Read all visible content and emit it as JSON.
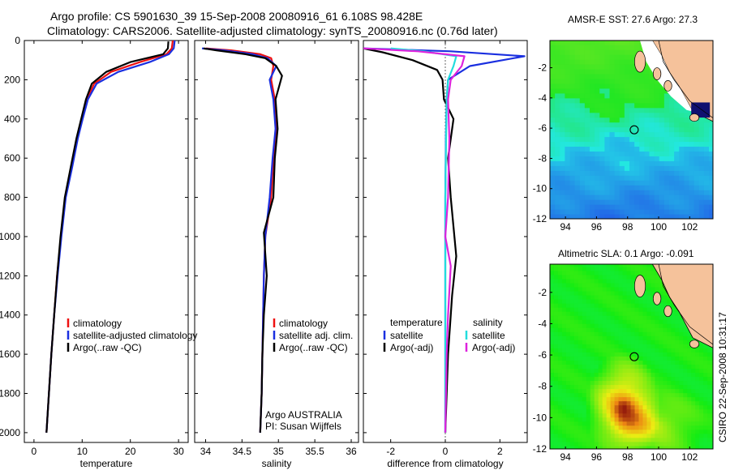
{
  "header": {
    "line1": "Argo profile: CS 5901630_39 15-Sep-2008 20080916_61 6.108S 98.428E",
    "line2": "Climatology: CARS2006. Satellite-adjusted climatology: synTS_20080916.nc (0.76d later)"
  },
  "stamp": "CSIRO 22-Sep-2008 10:31:17",
  "colors": {
    "climatology": "#ee1111",
    "satellite": "#1a2fe0",
    "argo": "#000000",
    "salinity_satellite": "#22dddd",
    "salinity_argo": "#dd22dd",
    "land": "#f5c29b"
  },
  "chart_data": [
    {
      "type": "line",
      "name": "temperature",
      "xlabel": "temperature",
      "ylabel": "",
      "xlim": [
        -2,
        32
      ],
      "ylim": [
        2050,
        0
      ],
      "xticks": [
        0,
        10,
        20,
        30
      ],
      "yticks": [
        0,
        200,
        400,
        600,
        800,
        1000,
        1200,
        1400,
        1600,
        1800,
        2000
      ],
      "legend": [
        "climatology",
        "satellite-adjusted climatology",
        "Argo(..raw -QC)"
      ],
      "series": [
        {
          "name": "climatology",
          "color": "#ee1111",
          "x": [
            28.8,
            28.6,
            27.5,
            22,
            16,
            12.5,
            11,
            10,
            9,
            7.8,
            6.5,
            5.6,
            4.8,
            4.2,
            3.6,
            3.1,
            2.6
          ],
          "y": [
            0,
            40,
            70,
            110,
            160,
            220,
            300,
            400,
            500,
            650,
            800,
            1000,
            1200,
            1400,
            1600,
            1800,
            2000
          ]
        },
        {
          "name": "satellite-adjusted climatology",
          "color": "#1a2fe0",
          "x": [
            29.2,
            29,
            28,
            24,
            17.5,
            13,
            11.2,
            10.1,
            9.1,
            7.9,
            6.6,
            5.7,
            4.9,
            4.2,
            3.6,
            3.1,
            2.6
          ],
          "y": [
            0,
            40,
            70,
            110,
            160,
            220,
            300,
            400,
            500,
            650,
            800,
            1000,
            1200,
            1400,
            1600,
            1800,
            2000
          ]
        },
        {
          "name": "Argo(..raw -QC)",
          "color": "#000000",
          "x": [
            27.9,
            27.8,
            26.8,
            20,
            15,
            12,
            10.8,
            9.8,
            8.8,
            7.6,
            6.4,
            5.5,
            4.8,
            4.2,
            3.6,
            3.1,
            2.6
          ],
          "y": [
            5,
            40,
            70,
            110,
            160,
            220,
            300,
            400,
            500,
            650,
            800,
            1000,
            1200,
            1400,
            1600,
            1800,
            2000
          ]
        }
      ]
    },
    {
      "type": "line",
      "name": "salinity",
      "xlabel": "salinity",
      "xlim": [
        33.85,
        36.1
      ],
      "ylim": [
        2050,
        0
      ],
      "xticks": [
        34,
        34.5,
        35,
        35.5,
        36
      ],
      "yticks": [
        0,
        200,
        400,
        600,
        800,
        1000,
        1200,
        1400,
        1600,
        1800,
        2000
      ],
      "legend": [
        "climatology",
        "satellite adj. clim.",
        "Argo(..raw -QC)"
      ],
      "annotation": [
        "Argo AUSTRALIA",
        "PI: Susan Wijffels"
      ],
      "series": [
        {
          "name": "climatology",
          "color": "#ee1111",
          "x": [
            34.0,
            34.35,
            34.75,
            34.9,
            34.93,
            34.9,
            34.95,
            34.97,
            34.93,
            34.9,
            34.82,
            34.8,
            34.79,
            34.78,
            34.77,
            34.76,
            34.75
          ],
          "y": [
            40,
            50,
            70,
            90,
            130,
            200,
            300,
            450,
            600,
            800,
            1000,
            1200,
            1400,
            1600,
            1800,
            1900,
            2000
          ]
        },
        {
          "name": "satellite adj. clim.",
          "color": "#1a2fe0",
          "x": [
            33.95,
            34.25,
            34.65,
            34.85,
            34.97,
            34.88,
            34.93,
            34.96,
            34.92,
            34.88,
            34.82,
            34.8,
            34.79,
            34.78,
            34.77,
            34.76,
            34.75
          ],
          "y": [
            40,
            50,
            70,
            90,
            130,
            200,
            300,
            450,
            600,
            800,
            1000,
            1200,
            1400,
            1600,
            1800,
            1900,
            2000
          ]
        },
        {
          "name": "Argo(..raw -QC)",
          "color": "#000000",
          "x": [
            33.97,
            34.15,
            34.55,
            34.82,
            34.97,
            35.05,
            34.96,
            34.99,
            34.95,
            34.93,
            34.8,
            34.84,
            34.8,
            34.78,
            34.77,
            34.76,
            34.75
          ],
          "y": [
            40,
            50,
            70,
            90,
            130,
            180,
            300,
            450,
            600,
            800,
            980,
            1200,
            1400,
            1600,
            1800,
            1900,
            2000
          ]
        }
      ]
    },
    {
      "type": "line",
      "name": "difference",
      "xlabel": "difference from climatology",
      "xlim": [
        -3,
        3
      ],
      "ylim": [
        2050,
        0
      ],
      "xticks": [
        -2,
        0,
        2
      ],
      "yticks": [
        0,
        200,
        400,
        600,
        800,
        1000,
        1200,
        1400,
        1600,
        1800,
        2000
      ],
      "legend_headers": [
        "temperature",
        "salinity"
      ],
      "legend_left": [
        "satellite",
        "Argo(-adj)"
      ],
      "legend_right": [
        "satellite",
        "Argo(-adj)"
      ],
      "series": [
        {
          "name": "temperature satellite",
          "color": "#1a2fe0",
          "x": [
            -3,
            0.2,
            2.9,
            0.9,
            0.1,
            0.05,
            0.02,
            0,
            0,
            0,
            0,
            0,
            0
          ],
          "y": [
            40,
            55,
            80,
            130,
            200,
            300,
            500,
            800,
            1000,
            1300,
            1600,
            1800,
            2000
          ]
        },
        {
          "name": "temperature Argo(-adj)",
          "color": "#000000",
          "x": [
            -3,
            -2.3,
            -1.2,
            -0.3,
            -0.1,
            -0.05,
            0.3,
            0.1,
            0.2,
            0.4,
            0.25,
            0.1,
            0
          ],
          "y": [
            40,
            60,
            100,
            150,
            200,
            300,
            400,
            600,
            800,
            1100,
            1300,
            1600,
            2000
          ]
        },
        {
          "name": "salinity satellite",
          "color": "#22dddd",
          "x": [
            -2,
            -0.8,
            0.4,
            0.3,
            0.1,
            0.05,
            0.03,
            0,
            0,
            0,
            0,
            0,
            0
          ],
          "y": [
            40,
            55,
            80,
            130,
            200,
            300,
            500,
            800,
            1000,
            1300,
            1600,
            1800,
            2000
          ]
        },
        {
          "name": "salinity Argo(-adj)",
          "color": "#dd22dd",
          "x": [
            -3,
            -1,
            0.7,
            0.6,
            0.2,
            0.1,
            0.15,
            0.1,
            0,
            0.2,
            0.1,
            0.05,
            0
          ],
          "y": [
            40,
            55,
            80,
            130,
            200,
            300,
            500,
            800,
            1000,
            1150,
            1400,
            1600,
            2000
          ]
        }
      ]
    },
    {
      "type": "heatmap",
      "name": "sst-map",
      "title": "AMSR-E SST: 27.6 Argo: 27.3",
      "xlim": [
        93,
        103.5
      ],
      "ylim": [
        -12,
        -0.2
      ],
      "xticks": [
        94,
        96,
        98,
        100,
        102
      ],
      "yticks": [
        -2,
        -4,
        -6,
        -8,
        -10,
        -12
      ],
      "argo_position": [
        98.428,
        -6.108
      ]
    },
    {
      "type": "heatmap",
      "name": "sla-map",
      "title": "Altimetric SLA: 0.1 Argo: -0.091",
      "xlim": [
        93,
        103.5
      ],
      "ylim": [
        -12,
        -0.2
      ],
      "xticks": [
        94,
        96,
        98,
        100,
        102
      ],
      "yticks": [
        -2,
        -4,
        -6,
        -8,
        -10,
        -12
      ],
      "argo_position": [
        98.428,
        -6.108
      ]
    }
  ]
}
